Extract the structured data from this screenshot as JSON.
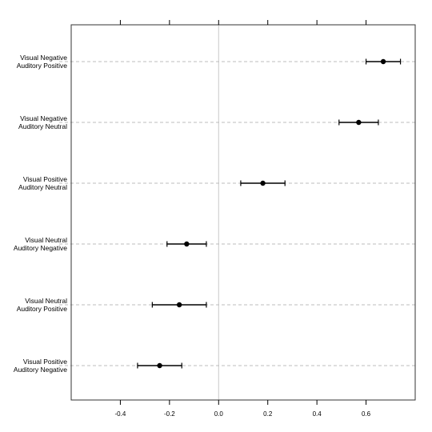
{
  "chart_data": {
    "type": "scatter",
    "subtype": "forest-plot-with-error-bars",
    "title": "",
    "xlabel": "",
    "ylabel": "",
    "xlim": [
      -0.6,
      0.8
    ],
    "xticks": [
      -0.4,
      -0.2,
      0.0,
      0.2,
      0.4,
      0.6
    ],
    "xtick_labels": [
      "-0.4",
      "-0.2",
      "0.0",
      "0.2",
      "0.4",
      "0.6"
    ],
    "reference_line_x": 0.0,
    "grid": "dashed horizontal line per row",
    "rows": [
      {
        "label_line1": "Visual Negative",
        "label_line2": "Auditory Positive",
        "estimate": 0.67,
        "lower": 0.6,
        "upper": 0.74
      },
      {
        "label_line1": "Visual Negative",
        "label_line2": "Auditory Neutral",
        "estimate": 0.57,
        "lower": 0.49,
        "upper": 0.65
      },
      {
        "label_line1": "Visual Positive",
        "label_line2": "Auditory Neutral",
        "estimate": 0.18,
        "lower": 0.09,
        "upper": 0.27
      },
      {
        "label_line1": "Visual Neutral",
        "label_line2": "Auditory Negative",
        "estimate": -0.13,
        "lower": -0.21,
        "upper": -0.05
      },
      {
        "label_line1": "Visual Neutral",
        "label_line2": "Auditory Positive",
        "estimate": -0.16,
        "lower": -0.27,
        "upper": -0.05
      },
      {
        "label_line1": "Visual Positive",
        "label_line2": "Auditory Negative",
        "estimate": -0.24,
        "lower": -0.33,
        "upper": -0.15
      }
    ],
    "colors": {
      "point": "#000000",
      "errorbar": "#000000",
      "grid": "#bdbdbd",
      "reference": "#c8c8c8",
      "frame": "#333333"
    }
  }
}
